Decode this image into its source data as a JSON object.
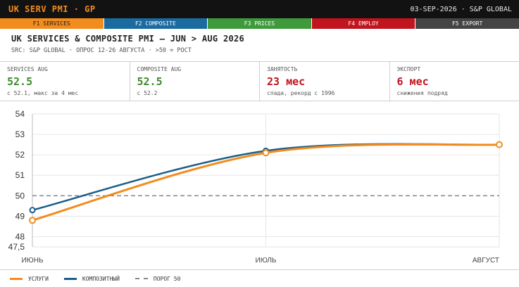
{
  "topbar": {
    "title": "UK SERV PMI · GP",
    "meta": "03-SEP-2026 · S&P GLOBAL"
  },
  "fkeys": [
    {
      "label": "F1 SERVICES"
    },
    {
      "label": "F2 COMPOSITE"
    },
    {
      "label": "F3 PRICES"
    },
    {
      "label": "F4 EMPLOY"
    },
    {
      "label": "F5 EXPORT"
    }
  ],
  "heading": "UK SERVICES & COMPOSITE PMI — JUN > AUG 2026",
  "subheading": "SRC: S&P GLOBAL · ОПРОС 12-26 АВГУСТА · >50 = РОСТ",
  "kpis": [
    {
      "label": "SERVICES AUG",
      "value": "52.5",
      "note": "с 52.1, макс за 4 мес",
      "color": "#3f8a2e"
    },
    {
      "label": "COMPOSITE AUG",
      "value": "52.5",
      "note": "с 52.2",
      "color": "#3f8a2e"
    },
    {
      "label": "ЗАНЯТОСТЬ",
      "value": "23 мес",
      "note": "спада, рекорд с 1996",
      "color": "#c0141e"
    },
    {
      "label": "ЭКСПОРТ",
      "value": "6 мес",
      "note": "снижения подряд",
      "color": "#c0141e"
    }
  ],
  "chart_data": {
    "type": "line",
    "categories": [
      "ИЮНЬ",
      "ИЮЛЬ",
      "АВГУСТ"
    ],
    "series": [
      {
        "name": "УСЛУГИ",
        "values": [
          48.8,
          52.1,
          52.5
        ],
        "color": "#f28c1e"
      },
      {
        "name": "КОМПОЗИТНЫЙ",
        "values": [
          49.3,
          52.2,
          52.5
        ],
        "color": "#1b5e8a"
      }
    ],
    "threshold": {
      "name": "ПОРОГ 50",
      "value": 50,
      "color": "#888888"
    },
    "yticks": [
      "54",
      "53",
      "52",
      "51",
      "50",
      "49",
      "48",
      "47,5"
    ],
    "ytick_values": [
      54,
      53,
      52,
      51,
      50,
      49,
      48,
      47.5
    ],
    "ylim": [
      47.5,
      54
    ],
    "grid": true,
    "legend": "bottom-left"
  },
  "legend": [
    {
      "label": "УСЛУГИ",
      "color": "#f28c1e"
    },
    {
      "label": "КОМПОЗИТНЫЙ",
      "color": "#1b5e8a"
    },
    {
      "label": "ПОРОГ 50",
      "color": "#888888"
    }
  ]
}
